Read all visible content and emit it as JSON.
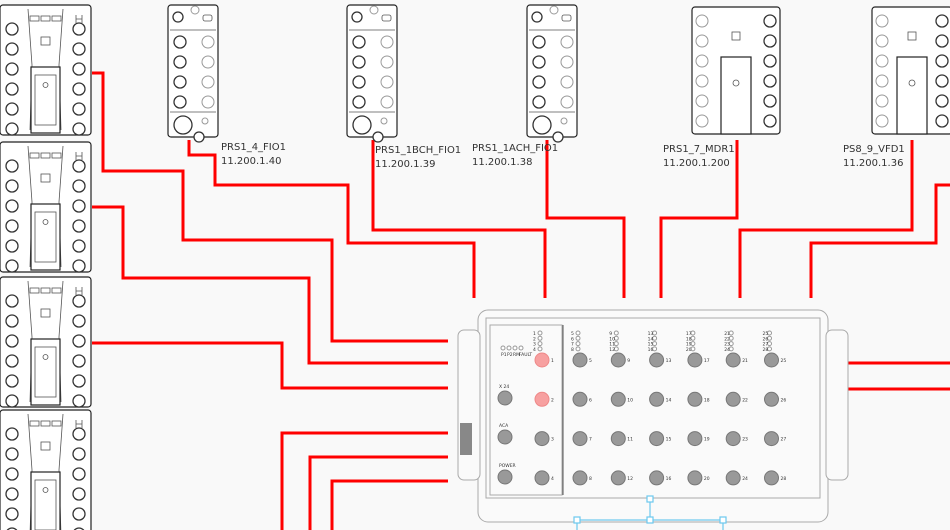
{
  "diagram": {
    "wire_color": "#ff0000",
    "selection_color": "#6cc8ee",
    "devices": [
      {
        "name": "PRS1_4_FIO1",
        "ip": "11.200.1.40"
      },
      {
        "name": "PRS1_1BCH_FIO1",
        "ip": "11.200.1.39"
      },
      {
        "name": "PRS1_1ACH_FIO1",
        "ip": "11.200.1.38"
      },
      {
        "name": "PRS1_7_MDR1",
        "ip": "11.200.1.200"
      },
      {
        "name": "PS8_9_VFD1",
        "ip": "11.200.1.36"
      }
    ],
    "switch": {
      "leds": [
        "P1",
        "P2",
        "RM",
        "FAULT"
      ],
      "left_ports": [
        "X 24",
        "ACA",
        "POWER"
      ],
      "port_numbers": [
        "1",
        "2",
        "3",
        "4",
        "5",
        "6",
        "7",
        "8",
        "9",
        "10",
        "11",
        "12",
        "13",
        "14",
        "15",
        "16",
        "17",
        "18",
        "19",
        "20",
        "21",
        "22",
        "23",
        "24",
        "25",
        "26",
        "27",
        "28"
      ],
      "highlighted_ports": [
        "1",
        "2"
      ]
    }
  }
}
